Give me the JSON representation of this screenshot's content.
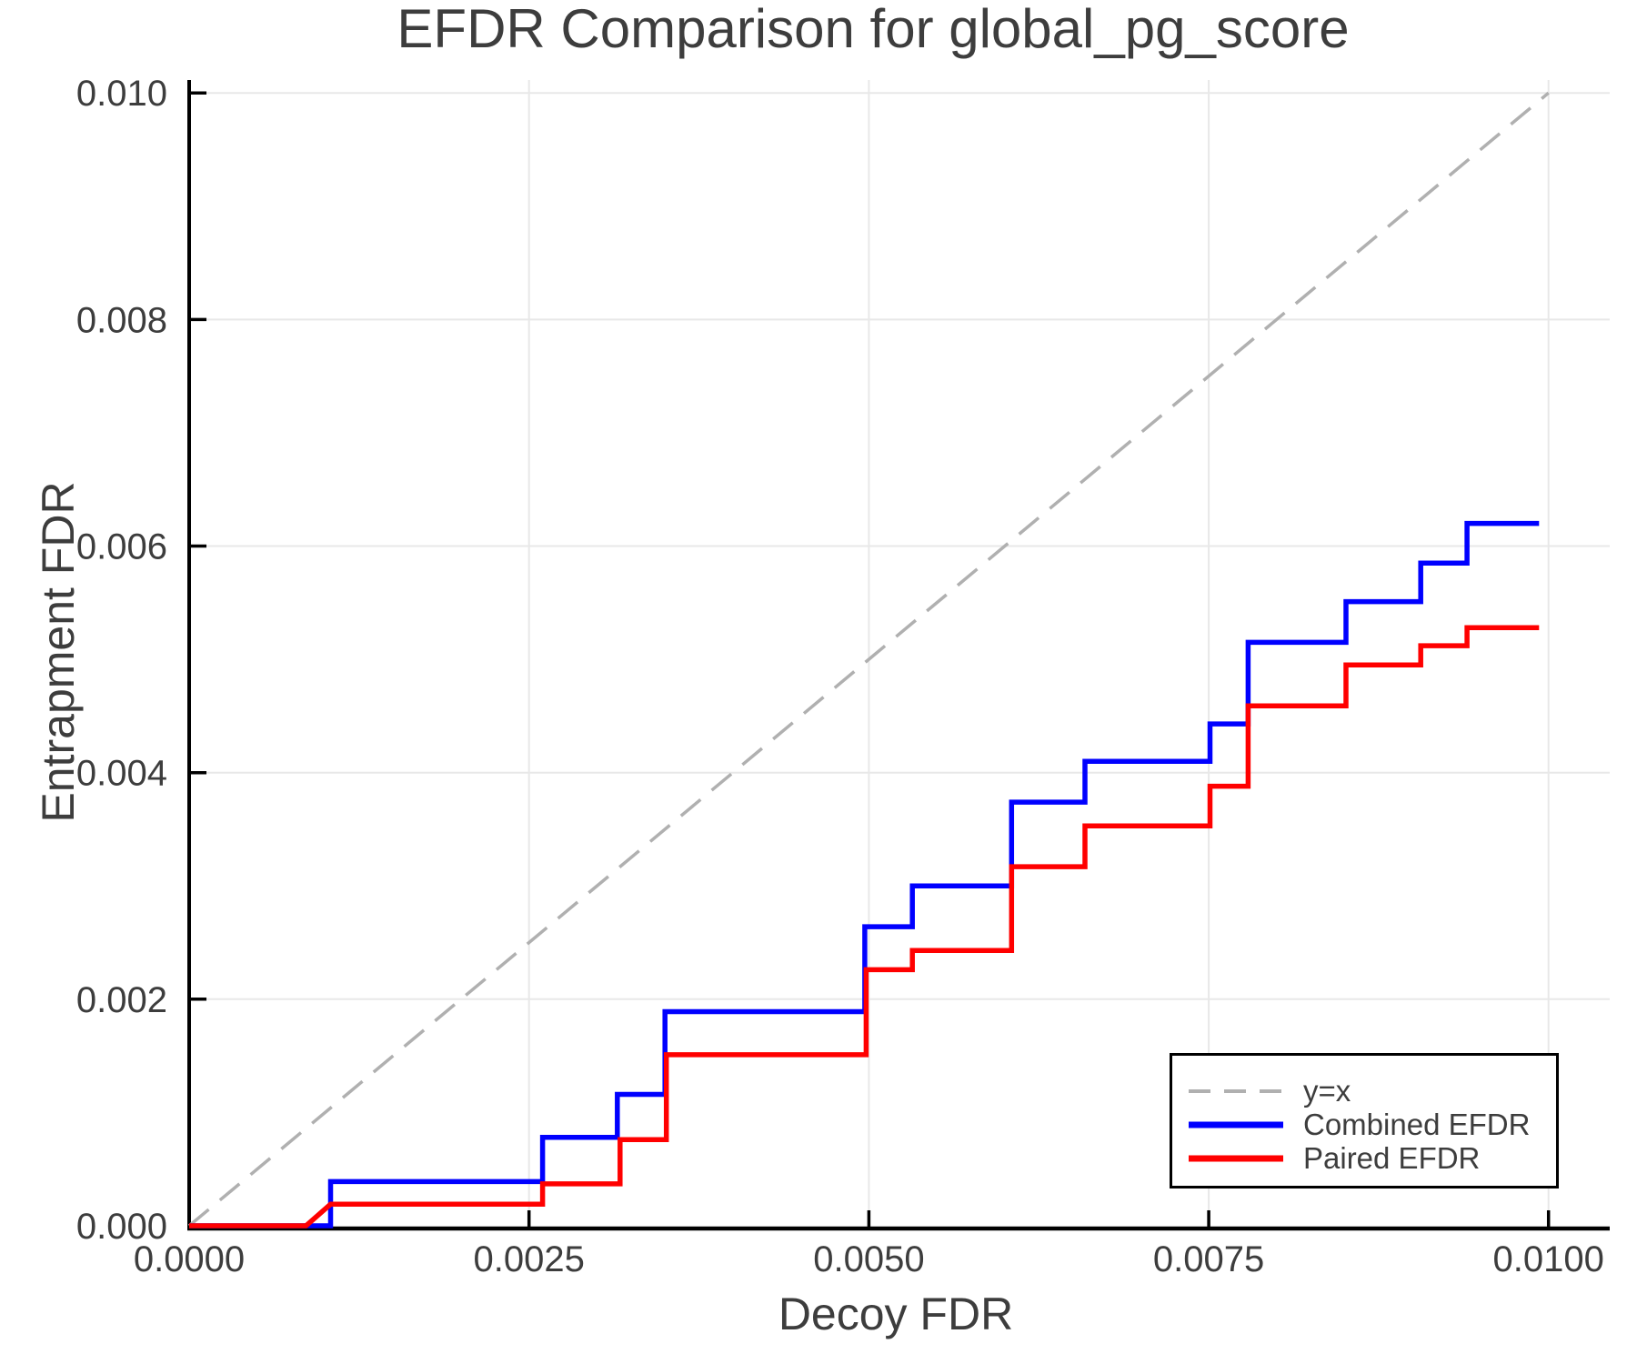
{
  "colors": {
    "background": "#ffffff",
    "text": "#3d3d3d",
    "axis": "#000000",
    "grid": "#e8e8e8"
  },
  "chart_data": {
    "type": "line",
    "title": "EFDR Comparison for global_pg_score",
    "xlabel": "Decoy FDR",
    "ylabel": "Entrapment FDR",
    "xlim": [
      0,
      0.01045
    ],
    "ylim": [
      0,
      0.01013
    ],
    "grid": true,
    "legend_position": "lower right",
    "xticks": {
      "values": [
        0,
        0.0025,
        0.005,
        0.0075,
        0.01
      ],
      "labels": [
        "0.0000",
        "0.0025",
        "0.0050",
        "0.0075",
        "0.0100"
      ]
    },
    "yticks": {
      "values": [
        0,
        0.002,
        0.004,
        0.006,
        0.008,
        0.01
      ],
      "labels": [
        "0.000",
        "0.002",
        "0.004",
        "0.006",
        "0.008",
        "0.010"
      ]
    },
    "series": [
      {
        "name": "y=x",
        "style": "dashed",
        "color": "#b0b0b0",
        "line_width": 3.5,
        "points": [
          [
            0,
            0
          ],
          [
            0.01,
            0.01
          ]
        ]
      },
      {
        "name": "Combined EFDR",
        "style": "solid",
        "color": "#0000ff",
        "line_width": 5.5,
        "points": [
          [
            0.0,
            0.0
          ],
          [
            0.00104,
            0.0
          ],
          [
            0.00104,
            0.00039
          ],
          [
            0.0026,
            0.00039
          ],
          [
            0.0026,
            0.00078
          ],
          [
            0.00315,
            0.00078
          ],
          [
            0.00315,
            0.00116
          ],
          [
            0.0035,
            0.00116
          ],
          [
            0.0035,
            0.00189
          ],
          [
            0.00497,
            0.00189
          ],
          [
            0.00497,
            0.00264
          ],
          [
            0.00532,
            0.00264
          ],
          [
            0.00532,
            0.003
          ],
          [
            0.00605,
            0.003
          ],
          [
            0.00605,
            0.00374
          ],
          [
            0.00659,
            0.00374
          ],
          [
            0.00659,
            0.0041
          ],
          [
            0.00751,
            0.0041
          ],
          [
            0.00751,
            0.00443
          ],
          [
            0.00779,
            0.00443
          ],
          [
            0.00779,
            0.00515
          ],
          [
            0.00851,
            0.00515
          ],
          [
            0.00851,
            0.00551
          ],
          [
            0.00906,
            0.00551
          ],
          [
            0.00906,
            0.00585
          ],
          [
            0.0094,
            0.00585
          ],
          [
            0.0094,
            0.0062
          ],
          [
            0.00993,
            0.0062
          ]
        ]
      },
      {
        "name": "Paired EFDR",
        "style": "solid",
        "color": "#ff0000",
        "line_width": 5.5,
        "points": [
          [
            0.0,
            0.0
          ],
          [
            0.00086,
            0.0
          ],
          [
            0.00104,
            0.00019
          ],
          [
            0.0026,
            0.00019
          ],
          [
            0.0026,
            0.00037
          ],
          [
            0.00317,
            0.00037
          ],
          [
            0.00317,
            0.00076
          ],
          [
            0.00351,
            0.00076
          ],
          [
            0.00351,
            0.00151
          ],
          [
            0.00498,
            0.00151
          ],
          [
            0.00498,
            0.00226
          ],
          [
            0.00532,
            0.00226
          ],
          [
            0.00532,
            0.00243
          ],
          [
            0.00605,
            0.00243
          ],
          [
            0.00605,
            0.00317
          ],
          [
            0.00659,
            0.00317
          ],
          [
            0.00659,
            0.00353
          ],
          [
            0.00751,
            0.00353
          ],
          [
            0.00751,
            0.00388
          ],
          [
            0.00779,
            0.00388
          ],
          [
            0.00779,
            0.00459
          ],
          [
            0.00851,
            0.00459
          ],
          [
            0.00851,
            0.00495
          ],
          [
            0.00906,
            0.00495
          ],
          [
            0.00906,
            0.00512
          ],
          [
            0.0094,
            0.00512
          ],
          [
            0.0094,
            0.00528
          ],
          [
            0.00993,
            0.00528
          ]
        ]
      }
    ]
  }
}
